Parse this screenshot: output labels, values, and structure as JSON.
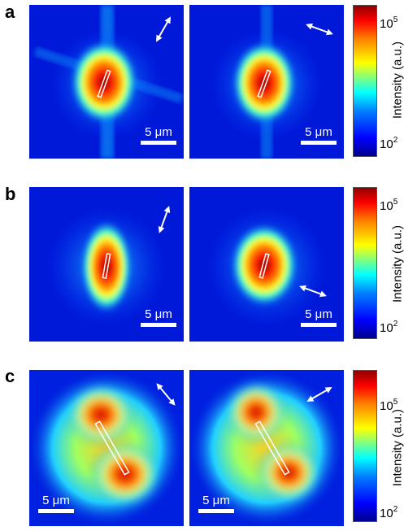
{
  "figure": {
    "rows": [
      {
        "letter": "a",
        "panels": [
          {
            "scale_label": "5 μm",
            "polarization_angle_deg": 60
          },
          {
            "scale_label": "5 μm",
            "polarization_angle_deg": 160
          }
        ],
        "colorbar": {
          "label": "Intensity (a.u.)",
          "top_tick": "10",
          "top_exp": "5",
          "bottom_tick": "10",
          "bottom_exp": "2"
        }
      },
      {
        "letter": "b",
        "panels": [
          {
            "scale_label": "5 μm",
            "polarization_angle_deg": 70
          },
          {
            "scale_label": "5 μm",
            "polarization_angle_deg": 160
          }
        ],
        "colorbar": {
          "label": "Intensity (a.u.)",
          "top_tick": "10",
          "top_exp": "5",
          "bottom_tick": "10",
          "bottom_exp": "2"
        }
      },
      {
        "letter": "c",
        "panels": [
          {
            "scale_label": "5 μm",
            "polarization_angle_deg": 130
          },
          {
            "scale_label": "5 μm",
            "polarization_angle_deg": 30
          }
        ],
        "colorbar": {
          "label": "Intensity (a.u.)",
          "top_tick": "10",
          "top_exp": "5",
          "bottom_tick": "10",
          "bottom_exp": "2"
        }
      }
    ],
    "colors": {
      "low": "#0000a0",
      "mid": "#00ffff",
      "high": "#ff0000",
      "peak": "#8f0000"
    }
  }
}
